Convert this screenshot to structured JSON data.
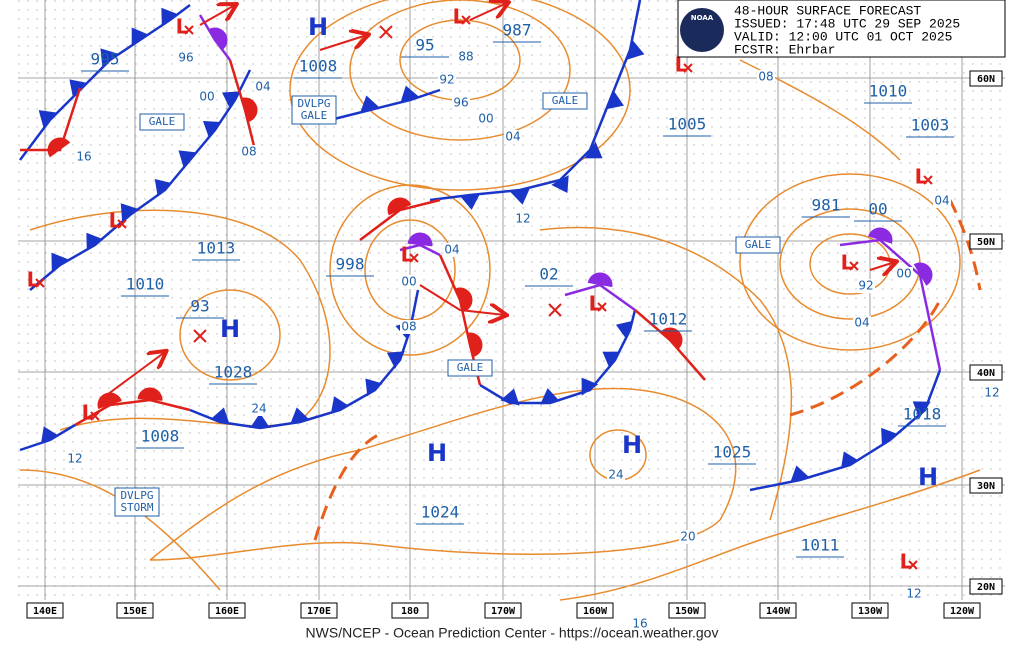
{
  "header": {
    "lines": [
      "48-HOUR SURFACE FORECAST",
      "ISSUED: 17:48 UTC 29 SEP 2025",
      "VALID:  12:00 UTC 01 OCT 2025",
      "FCSTR:  Ehrbar"
    ]
  },
  "logo": "NOAA",
  "pressure_labels": [
    "995",
    "1008",
    "95",
    "987",
    "1005",
    "1010",
    "1003",
    "981",
    "00",
    "1013",
    "998",
    "1010",
    "02",
    "1012",
    "93",
    "1028",
    "1008",
    "1024",
    "1025",
    "1018",
    "1011"
  ],
  "isobar_labels": [
    "96",
    "04",
    "00",
    "08",
    "16",
    "88",
    "92",
    "96",
    "00",
    "04",
    "12",
    "08",
    "04",
    "00",
    "08",
    "24",
    "12",
    "24",
    "20",
    "16",
    "92",
    "00",
    "04",
    "04",
    "12",
    "12"
  ],
  "boxes": [
    [
      "GALE"
    ],
    [
      "DVLPG",
      "GALE"
    ],
    [
      "GALE"
    ],
    [
      "GALE"
    ],
    [
      "GALE"
    ],
    [
      "DVLPG",
      "STORM"
    ]
  ],
  "highs": [
    "H",
    "H",
    "H",
    "H",
    "H"
  ],
  "lows": [
    "L",
    "L",
    "L",
    "L",
    "L",
    "L",
    "L",
    "L",
    "L",
    "L",
    "L"
  ],
  "longitudes": [
    "140E",
    "150E",
    "160E",
    "170E",
    "180",
    "170W",
    "160W",
    "150W",
    "140W",
    "130W",
    "120W"
  ],
  "latitudes": [
    "60N",
    "50N",
    "40N",
    "30N",
    "20N"
  ],
  "footer": "NWS/NCEP - Ocean Prediction Center - https://ocean.weather.gov"
}
